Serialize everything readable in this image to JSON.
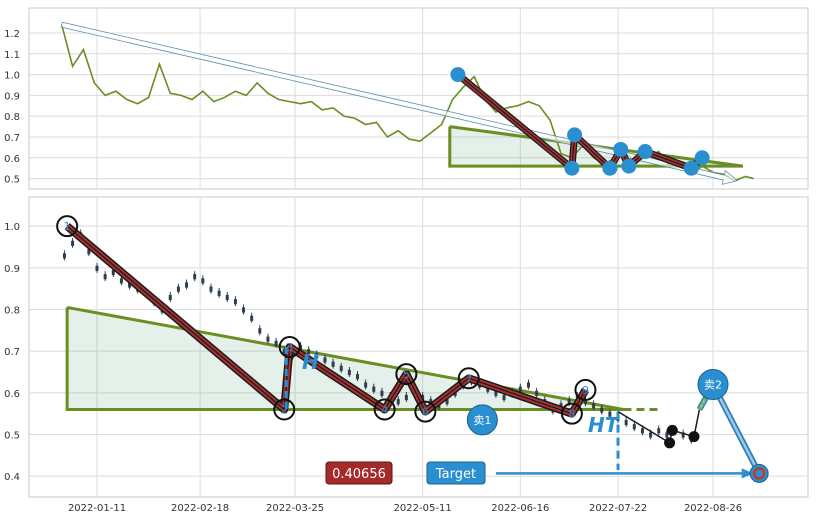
{
  "chart_data": [
    {
      "type": "line",
      "panel": "overview",
      "ylim": [
        0.45,
        1.32
      ],
      "yticks": [
        "0.5",
        "0.6",
        "0.7",
        "0.8",
        "0.9",
        "1.0",
        "1.1",
        "1.2"
      ],
      "grid": true,
      "series": [
        {
          "color": "#6b8e23",
          "x": [
            "2021-12-29",
            "2022-01-02",
            "2022-01-06",
            "2022-01-10",
            "2022-01-14",
            "2022-01-18",
            "2022-01-22",
            "2022-01-26",
            "2022-01-30",
            "2022-02-03",
            "2022-02-07",
            "2022-02-11",
            "2022-02-15",
            "2022-02-19",
            "2022-02-23",
            "2022-02-27",
            "2022-03-03",
            "2022-03-07",
            "2022-03-11",
            "2022-03-15",
            "2022-03-19",
            "2022-03-23",
            "2022-03-27",
            "2022-03-31",
            "2022-04-04",
            "2022-04-08",
            "2022-04-12",
            "2022-04-16",
            "2022-04-20",
            "2022-04-24",
            "2022-04-28",
            "2022-05-02",
            "2022-05-06",
            "2022-05-10",
            "2022-05-14",
            "2022-05-18",
            "2022-05-22",
            "2022-05-26",
            "2022-05-30",
            "2022-06-03",
            "2022-06-07",
            "2022-06-11",
            "2022-06-15",
            "2022-06-19",
            "2022-06-23",
            "2022-06-27",
            "2022-07-01",
            "2022-07-05",
            "2022-07-09",
            "2022-07-13",
            "2022-07-17",
            "2022-07-21",
            "2022-07-25",
            "2022-07-29",
            "2022-08-02",
            "2022-08-06",
            "2022-08-10",
            "2022-08-14",
            "2022-08-18",
            "2022-08-22",
            "2022-08-26",
            "2022-08-30",
            "2022-09-03",
            "2022-09-07",
            "2022-09-10"
          ],
          "values": [
            1.24,
            1.04,
            1.12,
            0.96,
            0.9,
            0.92,
            0.88,
            0.86,
            0.89,
            1.05,
            0.91,
            0.9,
            0.88,
            0.92,
            0.87,
            0.89,
            0.92,
            0.9,
            0.96,
            0.91,
            0.88,
            0.87,
            0.86,
            0.87,
            0.83,
            0.84,
            0.8,
            0.79,
            0.76,
            0.77,
            0.7,
            0.73,
            0.69,
            0.68,
            0.72,
            0.76,
            0.88,
            0.94,
            0.99,
            0.88,
            0.82,
            0.84,
            0.85,
            0.87,
            0.85,
            0.78,
            0.62,
            0.6,
            0.66,
            0.6,
            0.57,
            0.6,
            0.62,
            0.58,
            0.61,
            0.63,
            0.56,
            0.58,
            0.52,
            0.56,
            0.53,
            0.52,
            0.49,
            0.51,
            0.5
          ]
        }
      ],
      "annotations": {
        "trend_arrow": {
          "from": [
            "2021-12-29",
            1.24
          ],
          "to": [
            "2022-09-04",
            0.49
          ]
        },
        "wedge_area": {
          "start": "2022-05-21",
          "top": 0.75,
          "bottom": 0.56,
          "end": "2022-09-06",
          "apex": 0.56
        },
        "pattern_line": [
          [
            "2022-05-24",
            1.0
          ],
          [
            "2022-07-05",
            0.55
          ],
          [
            "2022-07-06",
            0.71
          ],
          [
            "2022-07-19",
            0.55
          ],
          [
            "2022-07-23",
            0.64
          ],
          [
            "2022-07-26",
            0.56
          ],
          [
            "2022-08-01",
            0.63
          ],
          [
            "2022-08-18",
            0.55
          ],
          [
            "2022-08-22",
            0.6
          ]
        ],
        "pivot_points": [
          [
            "2022-05-24",
            1.0
          ],
          [
            "2022-07-05",
            0.55
          ],
          [
            "2022-07-06",
            0.71
          ],
          [
            "2022-07-19",
            0.55
          ],
          [
            "2022-07-23",
            0.64
          ],
          [
            "2022-07-26",
            0.56
          ],
          [
            "2022-08-01",
            0.63
          ],
          [
            "2022-08-18",
            0.55
          ],
          [
            "2022-08-22",
            0.6
          ]
        ]
      }
    },
    {
      "type": "candlestick",
      "panel": "main",
      "ylim": [
        0.35,
        1.07
      ],
      "yticks": [
        "0.4",
        "0.5",
        "0.6",
        "0.7",
        "0.8",
        "0.9",
        "1.0"
      ],
      "xticks": [
        "2022-01-11",
        "2022-02-18",
        "2022-03-25",
        "2022-05-11",
        "2022-06-16",
        "2022-07-22",
        "2022-08-26"
      ],
      "grid": true,
      "candle_color": "#2c3e50",
      "candles": [
        [
          "2021-12-30",
          0.93
        ],
        [
          "2022-01-02",
          0.96
        ],
        [
          "2022-01-05",
          0.98
        ],
        [
          "2022-01-08",
          0.94
        ],
        [
          "2022-01-11",
          0.9
        ],
        [
          "2022-01-14",
          0.88
        ],
        [
          "2022-01-17",
          0.89
        ],
        [
          "2022-01-20",
          0.87
        ],
        [
          "2022-01-23",
          0.86
        ],
        [
          "2022-01-26",
          0.85
        ],
        [
          "2022-01-29",
          0.84
        ],
        [
          "2022-02-01",
          0.82
        ],
        [
          "2022-02-04",
          0.8
        ],
        [
          "2022-02-07",
          0.83
        ],
        [
          "2022-02-10",
          0.85
        ],
        [
          "2022-02-13",
          0.86
        ],
        [
          "2022-02-16",
          0.88
        ],
        [
          "2022-02-19",
          0.87
        ],
        [
          "2022-02-22",
          0.85
        ],
        [
          "2022-02-25",
          0.84
        ],
        [
          "2022-02-28",
          0.83
        ],
        [
          "2022-03-03",
          0.82
        ],
        [
          "2022-03-06",
          0.8
        ],
        [
          "2022-03-09",
          0.78
        ],
        [
          "2022-03-12",
          0.75
        ],
        [
          "2022-03-15",
          0.73
        ],
        [
          "2022-03-18",
          0.72
        ],
        [
          "2022-03-21",
          0.7
        ],
        [
          "2022-03-24",
          0.69
        ],
        [
          "2022-03-27",
          0.71
        ],
        [
          "2022-03-30",
          0.7
        ],
        [
          "2022-04-02",
          0.69
        ],
        [
          "2022-04-05",
          0.68
        ],
        [
          "2022-04-08",
          0.67
        ],
        [
          "2022-04-11",
          0.66
        ],
        [
          "2022-04-14",
          0.65
        ],
        [
          "2022-04-17",
          0.64
        ],
        [
          "2022-04-20",
          0.62
        ],
        [
          "2022-04-23",
          0.61
        ],
        [
          "2022-04-26",
          0.6
        ],
        [
          "2022-04-29",
          0.59
        ],
        [
          "2022-05-02",
          0.58
        ],
        [
          "2022-05-05",
          0.59
        ],
        [
          "2022-05-08",
          0.6
        ],
        [
          "2022-05-11",
          0.59
        ],
        [
          "2022-05-14",
          0.58
        ],
        [
          "2022-05-17",
          0.57
        ],
        [
          "2022-05-20",
          0.58
        ],
        [
          "2022-05-23",
          0.6
        ],
        [
          "2022-05-26",
          0.62
        ],
        [
          "2022-05-29",
          0.63
        ],
        [
          "2022-06-01",
          0.62
        ],
        [
          "2022-06-04",
          0.61
        ],
        [
          "2022-06-07",
          0.6
        ],
        [
          "2022-06-10",
          0.59
        ],
        [
          "2022-06-13",
          0.6
        ],
        [
          "2022-06-16",
          0.61
        ],
        [
          "2022-06-19",
          0.62
        ],
        [
          "2022-06-22",
          0.6
        ],
        [
          "2022-06-25",
          0.58
        ],
        [
          "2022-06-28",
          0.56
        ],
        [
          "2022-07-01",
          0.57
        ],
        [
          "2022-07-04",
          0.58
        ],
        [
          "2022-07-07",
          0.59
        ],
        [
          "2022-07-10",
          0.58
        ],
        [
          "2022-07-13",
          0.57
        ],
        [
          "2022-07-16",
          0.56
        ],
        [
          "2022-07-19",
          0.55
        ],
        [
          "2022-07-22",
          0.54
        ],
        [
          "2022-07-25",
          0.53
        ],
        [
          "2022-07-28",
          0.52
        ],
        [
          "2022-07-31",
          0.51
        ],
        [
          "2022-08-03",
          0.5
        ],
        [
          "2022-08-06",
          0.51
        ],
        [
          "2022-08-09",
          0.5
        ],
        [
          "2022-08-12",
          0.51
        ],
        [
          "2022-08-15",
          0.5
        ],
        [
          "2022-08-18",
          0.49
        ]
      ],
      "pattern_points": [
        {
          "label": "1",
          "x": "2021-12-31",
          "y": 1.0
        },
        {
          "label": "2",
          "x": "2022-03-21",
          "y": 0.56
        },
        {
          "label": "3",
          "x": "2022-03-23",
          "y": 0.71
        },
        {
          "label": "4",
          "x": "2022-04-27",
          "y": 0.56
        },
        {
          "label": "5",
          "x": "2022-05-05",
          "y": 0.645
        },
        {
          "label": "6",
          "x": "2022-05-12",
          "y": 0.555
        },
        {
          "label": "7",
          "x": "2022-05-28",
          "y": 0.635
        },
        {
          "label": "8",
          "x": "2022-07-05",
          "y": 0.55
        },
        {
          "label": "9",
          "x": "2022-07-10",
          "y": 0.607
        }
      ],
      "annotations": {
        "wedge_area": {
          "start": "2021-12-31",
          "top": 0.805,
          "bottom": 0.56,
          "end": "2022-07-24"
        },
        "dashed_extension": {
          "from": "2022-07-24",
          "to": "2022-08-07",
          "y": 0.56
        },
        "h_marker_left": {
          "x": "2022-03-21",
          "from": 0.56,
          "to": 0.71
        },
        "h_marker_right": {
          "x": "2022-07-22",
          "from": 0.415,
          "to": 0.555
        },
        "projection_path": [
          [
            "2022-07-22",
            0.555
          ],
          [
            "2022-08-10",
            0.48
          ],
          [
            "2022-08-11",
            0.51
          ],
          [
            "2022-08-19",
            0.495
          ],
          [
            "2022-08-21",
            0.56
          ]
        ],
        "sell_markers": [
          {
            "label": "卖1",
            "x": "2022-06-02",
            "y": 0.535
          },
          {
            "label": "卖2",
            "x": "2022-08-26",
            "y": 0.62
          }
        ],
        "target_marker": {
          "x": "2022-09-12",
          "y": 0.40656
        },
        "sell2_path": [
          [
            "2022-08-21",
            0.56
          ],
          [
            "2022-08-26",
            0.62
          ],
          [
            "2022-09-12",
            0.40656
          ]
        ],
        "target_arrow": {
          "from": "2022-06-07",
          "to": "2022-09-10",
          "y": 0.40656
        }
      },
      "labels": {
        "target_value": "0.40656",
        "target_label": "Target",
        "h_label": "H",
        "ht_label": "HT"
      }
    }
  ]
}
